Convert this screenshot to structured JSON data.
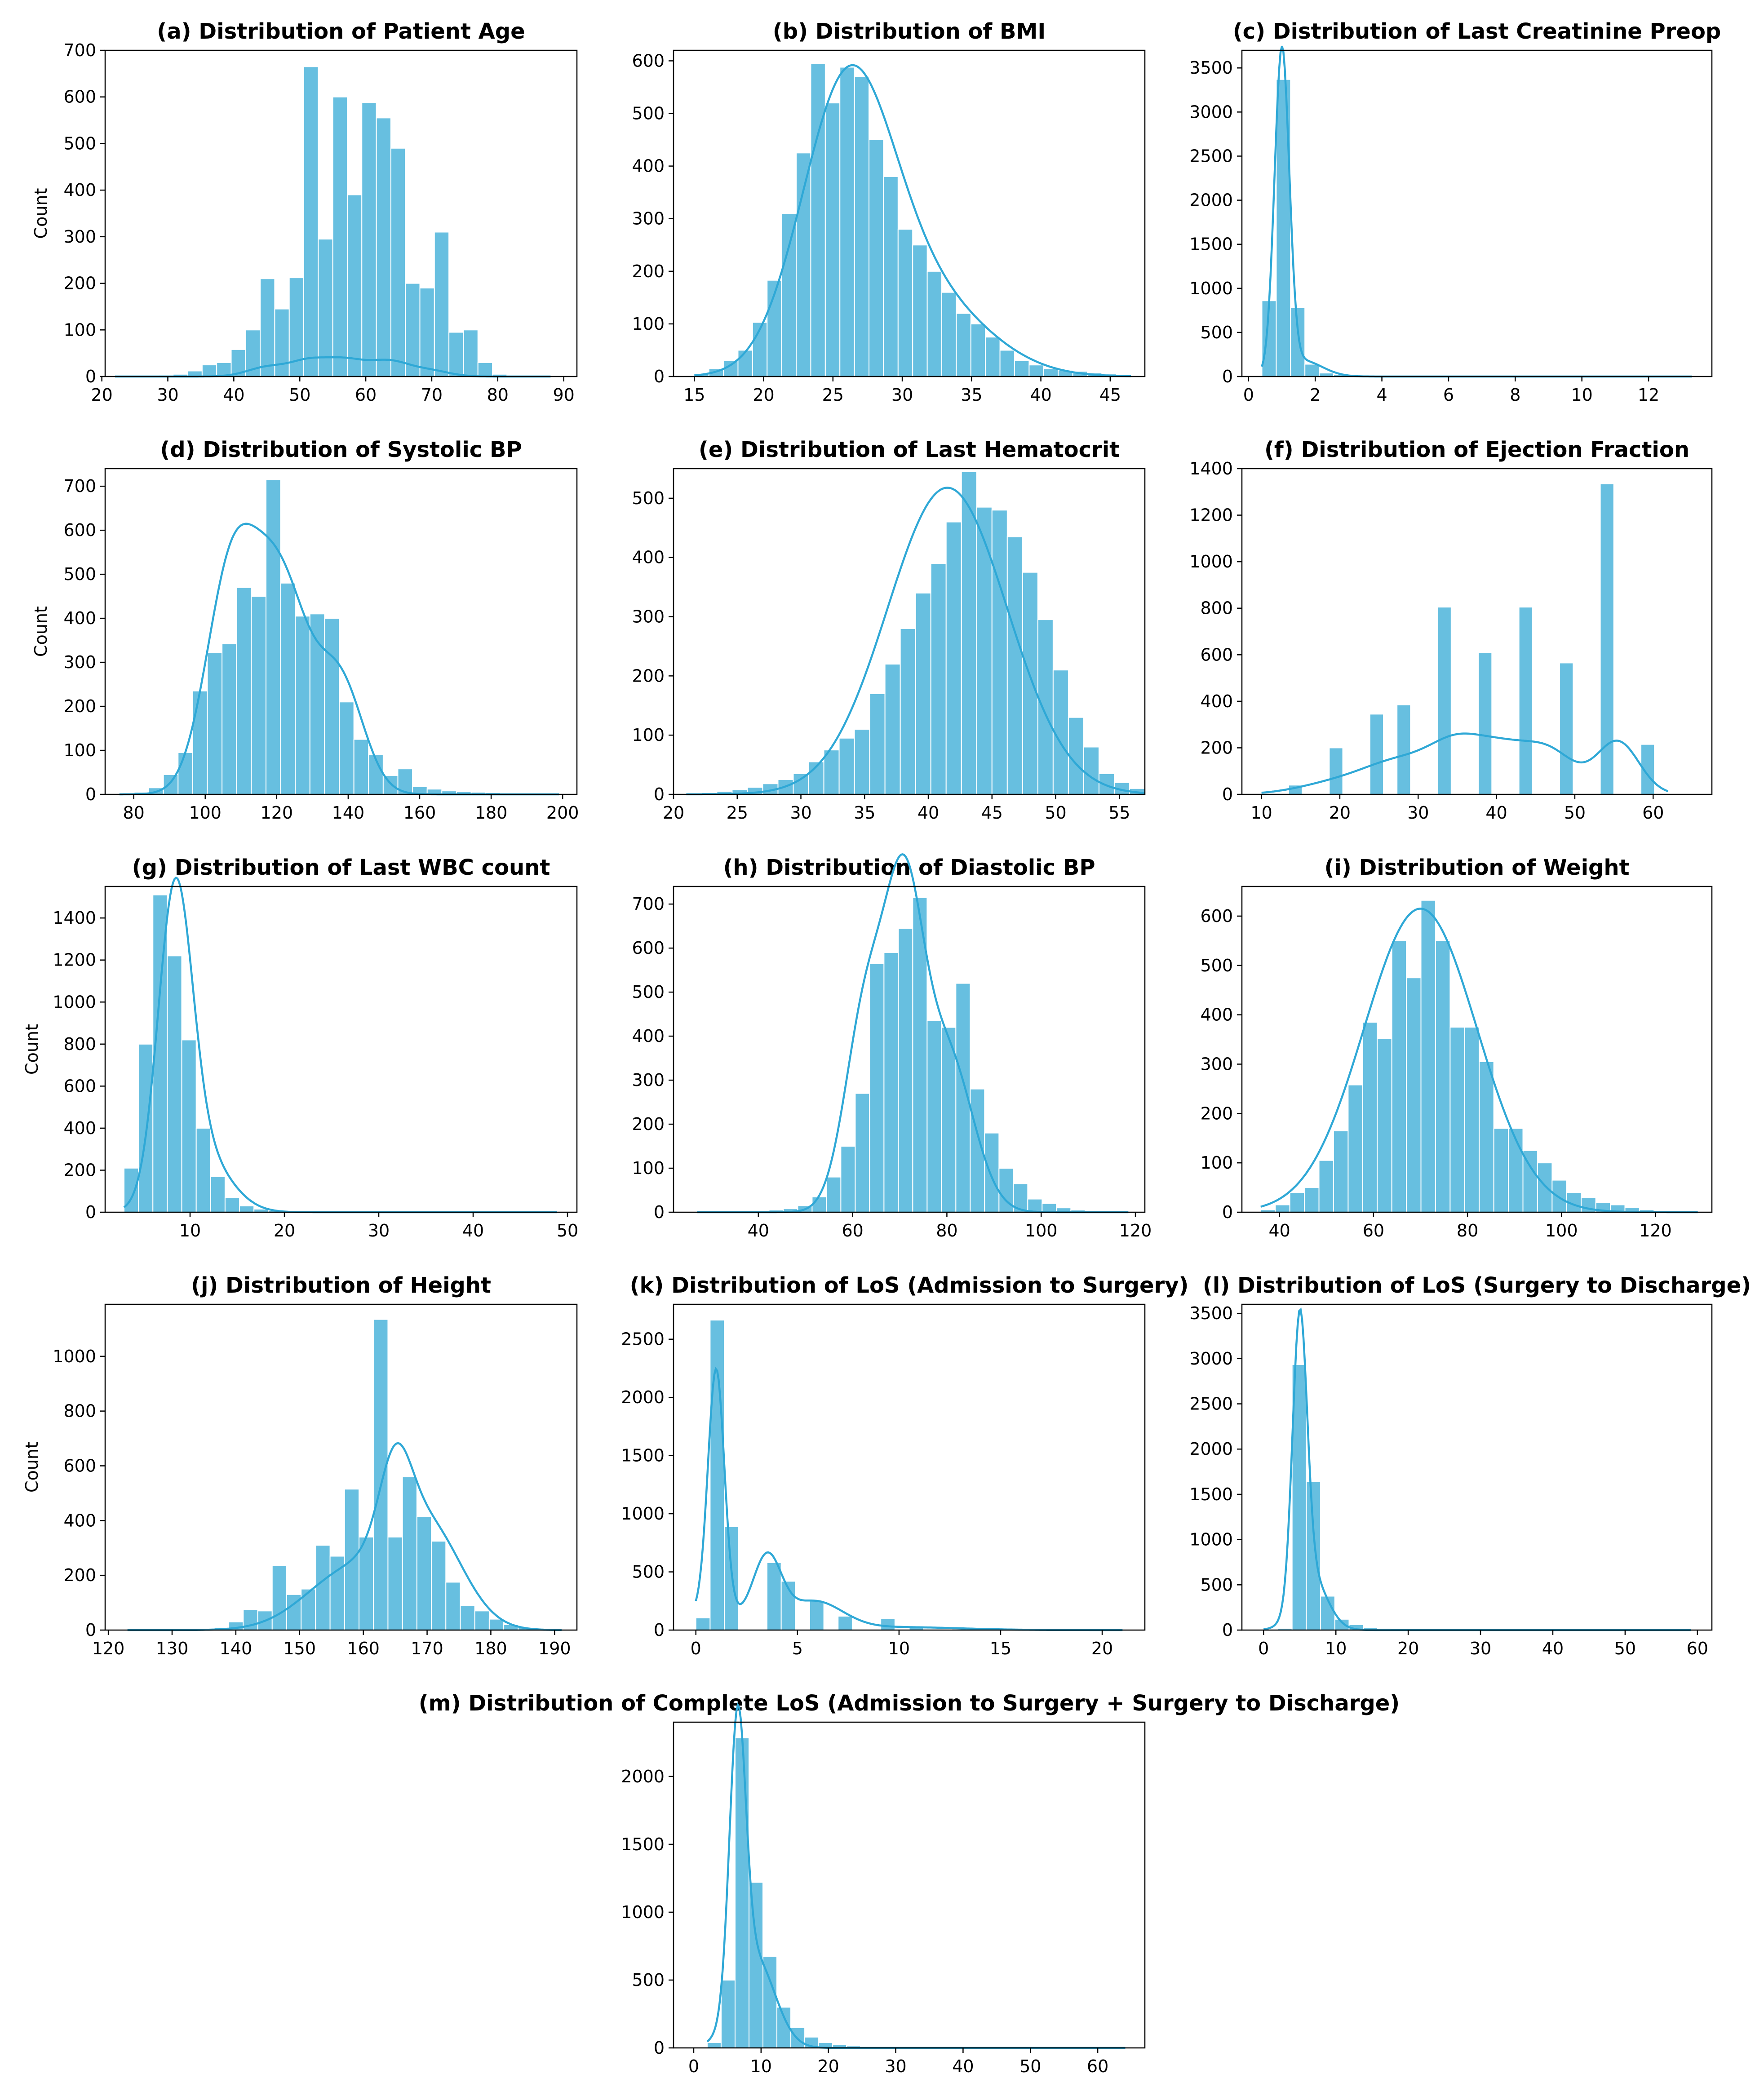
{
  "figure": {
    "colors": {
      "bar": "#67bfe0",
      "bar_edge": "#ffffff",
      "kde": "#2fa8d6",
      "axis": "#000000"
    }
  },
  "chart_data": [
    {
      "id": "a",
      "type": "histogram",
      "title": "(a) Distribution of Patient Age",
      "xlabel": "",
      "ylabel": "Count",
      "xlim": [
        20.5,
        92
      ],
      "ylim": [
        0,
        700
      ],
      "xticks": [
        20,
        30,
        40,
        50,
        60,
        70,
        80,
        90
      ],
      "yticks": [
        0,
        100,
        200,
        300,
        400,
        500,
        600,
        700
      ],
      "bin_start": 22,
      "bin_width": 2.2,
      "values": [
        1,
        1,
        2,
        3,
        5,
        12,
        25,
        30,
        58,
        100,
        210,
        145,
        212,
        665,
        295,
        600,
        390,
        588,
        555,
        490,
        200,
        190,
        310,
        95,
        100,
        30,
        5,
        2,
        1,
        1
      ],
      "kde_scale": 660,
      "kde": [
        [
          45,
          3,
          0.22
        ],
        [
          51.5,
          3,
          0.38
        ],
        [
          57,
          2.8,
          0.32
        ],
        [
          63.5,
          3.2,
          0.4
        ],
        [
          70,
          2.8,
          0.12
        ]
      ]
    },
    {
      "id": "b",
      "type": "histogram",
      "title": "(b) Distribution of BMI",
      "xlabel": "",
      "ylabel": "",
      "xlim": [
        13.5,
        47.5
      ],
      "ylim": [
        0,
        620
      ],
      "xticks": [
        15,
        20,
        25,
        30,
        35,
        40,
        45
      ],
      "yticks": [
        0,
        100,
        200,
        300,
        400,
        500,
        600
      ],
      "bin_start": 15,
      "bin_width": 1.05,
      "values": [
        5,
        15,
        30,
        50,
        103,
        183,
        310,
        425,
        595,
        520,
        588,
        570,
        450,
        380,
        280,
        250,
        200,
        160,
        120,
        100,
        75,
        50,
        30,
        22,
        15,
        12,
        10,
        7,
        5,
        3
      ],
      "kde_scale": 5950,
      "kde": [
        [
          26,
          3.3,
          0.72
        ],
        [
          31.5,
          4.5,
          0.28
        ]
      ]
    },
    {
      "id": "c",
      "type": "histogram",
      "title": "(c) Distribution of Last Creatinine Preop",
      "xlabel": "",
      "ylabel": "",
      "xlim": [
        -0.2,
        13.9
      ],
      "ylim": [
        0,
        3700
      ],
      "xticks": [
        0,
        2,
        4,
        6,
        8,
        10,
        12
      ],
      "yticks": [
        0,
        500,
        1000,
        1500,
        2000,
        2500,
        3000,
        3500
      ],
      "bin_start": 0.4,
      "bin_width": 0.43,
      "values": [
        860,
        3370,
        780,
        140,
        40,
        20,
        10,
        6,
        4,
        3,
        2,
        2,
        1,
        1,
        1,
        1,
        1,
        1,
        1,
        1,
        1,
        1,
        1,
        1,
        1,
        1,
        1,
        1,
        1,
        1
      ],
      "kde_scale": 2280,
      "kde": [
        [
          1.0,
          0.22,
          0.88
        ],
        [
          1.6,
          0.6,
          0.12
        ]
      ]
    },
    {
      "id": "d",
      "type": "histogram",
      "title": "(d) Distribution of Systolic BP",
      "xlabel": "",
      "ylabel": "Count",
      "xlim": [
        72,
        204
      ],
      "ylim": [
        0,
        740
      ],
      "xticks": [
        80,
        100,
        120,
        140,
        160,
        180,
        200
      ],
      "yticks": [
        0,
        100,
        200,
        300,
        400,
        500,
        600,
        700
      ],
      "bin_start": 76,
      "bin_width": 4.1,
      "values": [
        2,
        5,
        15,
        45,
        95,
        235,
        322,
        342,
        470,
        450,
        715,
        480,
        405,
        410,
        400,
        210,
        125,
        90,
        43,
        58,
        18,
        12,
        8,
        6,
        5,
        4,
        3,
        2,
        2,
        1
      ],
      "kde_scale": 21600,
      "kde": [
        [
          107,
          7,
          0.38
        ],
        [
          121,
          8,
          0.44
        ],
        [
          138,
          6.5,
          0.18
        ]
      ]
    },
    {
      "id": "e",
      "type": "histogram",
      "title": "(e) Distribution of Last Hematocrit",
      "xlabel": "",
      "ylabel": "",
      "xlim": [
        20,
        57
      ],
      "ylim": [
        0,
        550
      ],
      "xticks": [
        20,
        25,
        30,
        35,
        40,
        45,
        50,
        55
      ],
      "yticks": [
        0,
        100,
        200,
        300,
        400,
        500
      ],
      "bin_start": 21,
      "bin_width": 1.2,
      "values": [
        2,
        3,
        5,
        8,
        12,
        18,
        25,
        35,
        55,
        75,
        95,
        110,
        170,
        220,
        280,
        340,
        390,
        460,
        545,
        485,
        480,
        435,
        375,
        295,
        210,
        130,
        80,
        35,
        20,
        10
      ],
      "kde_scale": 6100,
      "kde": [
        [
          41.5,
          4.7,
          1.0
        ]
      ]
    },
    {
      "id": "f",
      "type": "histogram",
      "title": "(f) Distribution of Ejection Fraction",
      "xlabel": "",
      "ylabel": "",
      "xlim": [
        7.5,
        67.5
      ],
      "ylim": [
        0,
        1400
      ],
      "xticks": [
        10,
        20,
        30,
        40,
        50,
        60
      ],
      "yticks": [
        0,
        200,
        400,
        600,
        800,
        1000,
        1200,
        1400
      ],
      "bin_start": 10,
      "bin_width": 1.73,
      "values": [
        0,
        0,
        40,
        0,
        0,
        200,
        0,
        0,
        345,
        0,
        385,
        0,
        0,
        805,
        0,
        0,
        610,
        0,
        0,
        805,
        0,
        0,
        565,
        0,
        0,
        1335,
        0,
        0,
        215,
        0
      ],
      "kde_scale": 8000,
      "kde": [
        [
          20,
          5,
          0.08
        ],
        [
          28,
          4.5,
          0.18
        ],
        [
          35,
          3.5,
          0.2
        ],
        [
          41,
          3.5,
          0.18
        ],
        [
          47,
          3.3,
          0.17
        ],
        [
          55.5,
          2.7,
          0.19
        ]
      ]
    },
    {
      "id": "g",
      "type": "histogram",
      "title": "(g) Distribution of Last WBC count",
      "xlabel": "",
      "ylabel": "Count",
      "xlim": [
        1,
        51
      ],
      "ylim": [
        0,
        1550
      ],
      "xticks": [
        10,
        20,
        30,
        40,
        50
      ],
      "yticks": [
        0,
        200,
        400,
        600,
        800,
        1000,
        1200,
        1400
      ],
      "bin_start": 3,
      "bin_width": 1.53,
      "values": [
        210,
        800,
        1510,
        1220,
        820,
        400,
        170,
        70,
        30,
        15,
        8,
        5,
        3,
        2,
        1,
        1,
        1,
        1,
        1,
        1,
        1,
        1,
        1,
        1,
        1,
        1,
        1,
        1,
        1,
        1
      ],
      "kde_scale": 8400,
      "kde": [
        [
          8.4,
          1.8,
          0.75
        ],
        [
          11,
          3,
          0.25
        ]
      ]
    },
    {
      "id": "h",
      "type": "histogram",
      "title": "(h) Distribution of Diastolic BP",
      "xlabel": "",
      "ylabel": "",
      "xlim": [
        22,
        122
      ],
      "ylim": [
        0,
        740
      ],
      "xticks": [
        40,
        60,
        80,
        100,
        120
      ],
      "yticks": [
        0,
        100,
        200,
        300,
        400,
        500,
        600,
        700
      ],
      "bin_start": 27,
      "bin_width": 3.05,
      "values": [
        1,
        1,
        1,
        2,
        3,
        5,
        8,
        15,
        35,
        80,
        150,
        270,
        565,
        590,
        645,
        715,
        435,
        420,
        520,
        280,
        180,
        100,
        65,
        30,
        20,
        10,
        5,
        3,
        2,
        1
      ],
      "kde_scale": 16400,
      "kde": [
        [
          63,
          4.5,
          0.32
        ],
        [
          71,
          4,
          0.38
        ],
        [
          80,
          5.5,
          0.3
        ]
      ]
    },
    {
      "id": "i",
      "type": "histogram",
      "title": "(i) Distribution of Weight",
      "xlabel": "",
      "ylabel": "",
      "xlim": [
        32,
        132
      ],
      "ylim": [
        0,
        660
      ],
      "xticks": [
        40,
        60,
        80,
        100,
        120
      ],
      "yticks": [
        0,
        100,
        200,
        300,
        400,
        500,
        600
      ],
      "bin_start": 36,
      "bin_width": 3.1,
      "values": [
        5,
        15,
        40,
        50,
        105,
        165,
        258,
        385,
        352,
        550,
        475,
        632,
        550,
        375,
        375,
        305,
        170,
        170,
        125,
        100,
        65,
        40,
        30,
        20,
        15,
        10,
        5,
        3,
        2,
        1
      ],
      "kde_scale": 18500,
      "kde": [
        [
          70,
          12,
          1.0
        ]
      ]
    },
    {
      "id": "j",
      "type": "histogram",
      "title": "(j) Distribution of Height",
      "xlabel": "",
      "ylabel": "Count",
      "xlim": [
        119.5,
        193.5
      ],
      "ylim": [
        0,
        1190
      ],
      "xticks": [
        120,
        130,
        140,
        150,
        160,
        170,
        180,
        190
      ],
      "yticks": [
        0,
        200,
        400,
        600,
        800,
        1000
      ],
      "bin_start": 123,
      "bin_width": 2.27,
      "values": [
        1,
        1,
        1,
        2,
        3,
        5,
        10,
        30,
        75,
        70,
        235,
        130,
        150,
        310,
        270,
        515,
        340,
        1135,
        340,
        560,
        415,
        325,
        175,
        90,
        70,
        40,
        20,
        10,
        5,
        2
      ],
      "kde_scale": 10700,
      "kde": [
        [
          158,
          7,
          0.35
        ],
        [
          165,
          2.5,
          0.18
        ],
        [
          170,
          5.5,
          0.47
        ]
      ]
    },
    {
      "id": "k",
      "type": "histogram",
      "title": "(k) Distribution of LoS (Admission to Surgery)",
      "xlabel": "",
      "ylabel": "",
      "xlim": [
        -1.1,
        22.1
      ],
      "ylim": [
        0,
        2800
      ],
      "xticks": [
        0,
        5,
        10,
        15,
        20
      ],
      "yticks": [
        0,
        500,
        1000,
        1500,
        2000,
        2500
      ],
      "bin_start": 0,
      "bin_width": 0.7,
      "values": [
        105,
        2665,
        890,
        0,
        0,
        580,
        420,
        0,
        255,
        0,
        120,
        0,
        0,
        100,
        0,
        20,
        0,
        0,
        10,
        0,
        0,
        5,
        0,
        0,
        3,
        0,
        0,
        2,
        0,
        1
      ],
      "kde_scale": 4700,
      "kde": [
        [
          1.0,
          0.4,
          0.44
        ],
        [
          0.7,
          1.2,
          0.12
        ],
        [
          3.5,
          0.7,
          0.22
        ],
        [
          5.8,
          1.4,
          0.18
        ],
        [
          10,
          3,
          0.04
        ]
      ]
    },
    {
      "id": "l",
      "type": "histogram",
      "title": "(l) Distribution of LoS (Surgery to Discharge)",
      "xlabel": "",
      "ylabel": "",
      "xlim": [
        -3,
        62
      ],
      "ylim": [
        0,
        3600
      ],
      "xticks": [
        0,
        10,
        20,
        30,
        40,
        50,
        60
      ],
      "yticks": [
        0,
        500,
        1000,
        1500,
        2000,
        2500,
        3000,
        3500
      ],
      "bin_start": 0,
      "bin_width": 1.97,
      "values": [
        5,
        20,
        2935,
        1640,
        375,
        120,
        60,
        30,
        20,
        15,
        10,
        8,
        6,
        5,
        4,
        3,
        3,
        2,
        2,
        2,
        1,
        1,
        1,
        1,
        1,
        1,
        1,
        1,
        1,
        1
      ],
      "kde_scale": 11000,
      "kde": [
        [
          5.0,
          1.0,
          0.7
        ],
        [
          6.5,
          2.2,
          0.3
        ]
      ]
    },
    {
      "id": "m",
      "type": "histogram",
      "title": "(m) Distribution of Complete LoS (Admission to Surgery + Surgery to Discharge)",
      "xlabel": "",
      "ylabel": "",
      "xlim": [
        -3,
        67
      ],
      "ylim": [
        0,
        2400
      ],
      "xticks": [
        0,
        10,
        20,
        30,
        40,
        50,
        60
      ],
      "yticks": [
        0,
        500,
        1000,
        1500,
        2000
      ],
      "bin_start": 2,
      "bin_width": 2.07,
      "values": [
        40,
        500,
        2285,
        1220,
        675,
        300,
        150,
        80,
        40,
        25,
        15,
        10,
        8,
        6,
        5,
        4,
        3,
        3,
        2,
        2,
        2,
        1,
        1,
        1,
        1,
        1,
        1,
        1,
        1,
        1
      ],
      "kde_scale": 11200,
      "kde": [
        [
          6.5,
          1.2,
          0.55
        ],
        [
          9,
          3,
          0.45
        ]
      ]
    }
  ]
}
